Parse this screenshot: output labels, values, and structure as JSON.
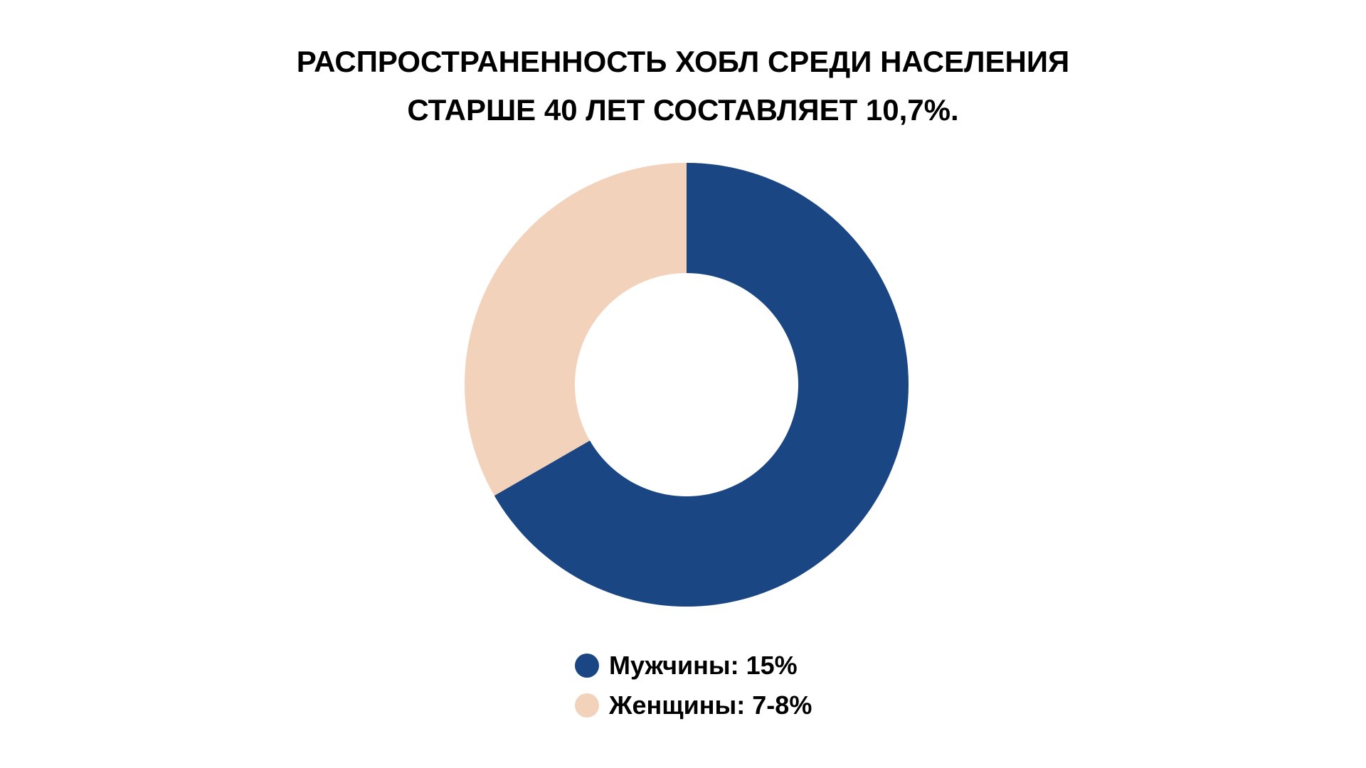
{
  "chart_data": {
    "type": "pie",
    "variant": "donut",
    "title": {
      "line1": "РАСПРОСТРАНЕННОСТЬ ХОБЛ СРЕДИ НАСЕЛЕНИЯ",
      "line2": "СТАРШЕ 40 ЛЕТ СОСТАВЛЯЕТ 10,7%."
    },
    "legend_position": "bottom-center",
    "slices": [
      {
        "name": "Мужчины",
        "label": "Мужчины: 15%",
        "value": 15,
        "color": "#1b4684"
      },
      {
        "name": "Женщины",
        "label": "Женщины: 7-8%",
        "value": 7.5,
        "color": "#f3d2bb"
      }
    ]
  }
}
